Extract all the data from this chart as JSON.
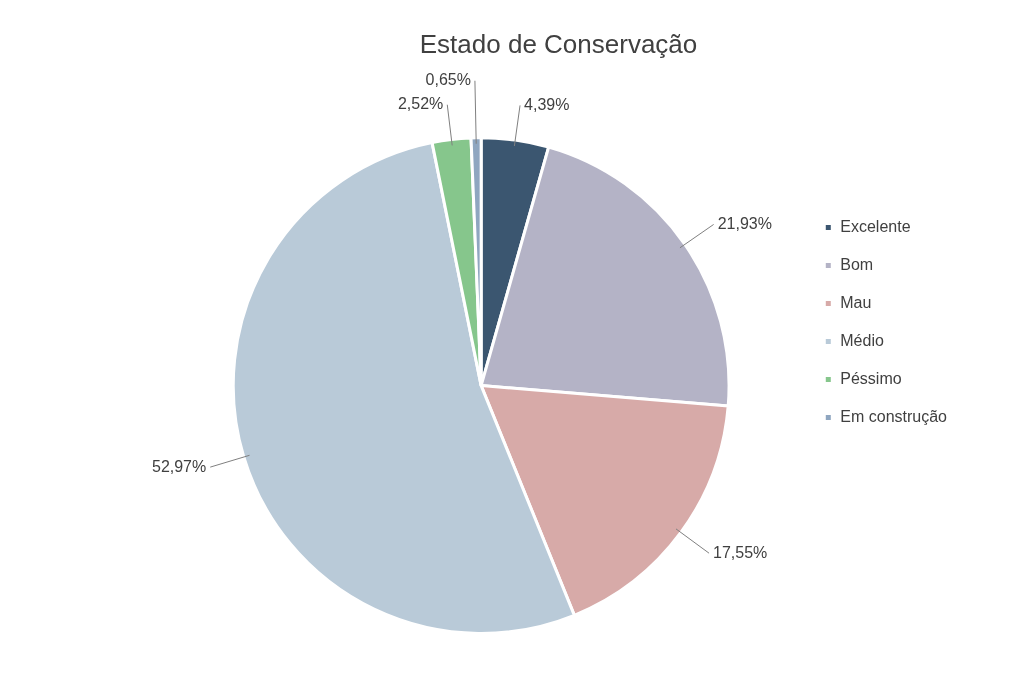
{
  "chart_data": {
    "type": "pie",
    "title": "Estado de Conservação",
    "categories": [
      "Excelente",
      "Bom",
      "Mau",
      "Médio",
      "Péssimo",
      "Em construção"
    ],
    "values": [
      4.39,
      21.93,
      17.55,
      52.97,
      2.52,
      0.65
    ],
    "colors": [
      "#3b5670",
      "#b4b3c6",
      "#d7aaa8",
      "#b9cad8",
      "#86c68c",
      "#8fa6c0"
    ],
    "value_labels": [
      "4,39%",
      "21,93%",
      "17,55%",
      "52,97%",
      "2,52%",
      "0,65%"
    ],
    "legend": "right"
  }
}
